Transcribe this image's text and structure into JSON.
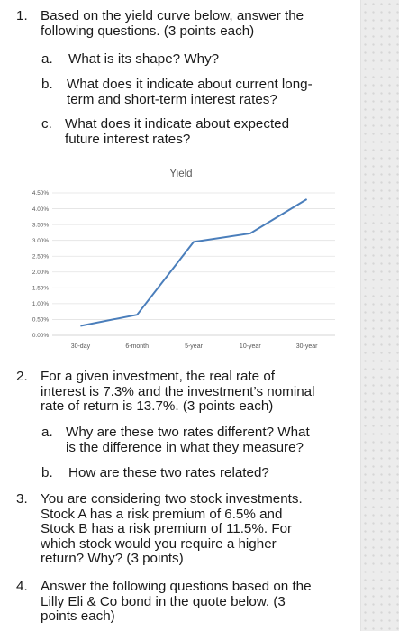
{
  "q1": {
    "num": "1.",
    "text_line1": "Based on the yield curve below, answer the",
    "text_line2": "following questions. (3 points each)",
    "a_label": "a.",
    "a_text": "What is its shape? Why?",
    "b_label": "b.",
    "b_line1": "What does it indicate about current long-",
    "b_line2": "term and short-term interest rates?",
    "c_label": "c.",
    "c_line1": "What does it indicate about expected",
    "c_line2": "future interest rates?"
  },
  "chart_data": {
    "type": "line",
    "title": "Yield",
    "categories": [
      "30-day",
      "6-month",
      "5-year",
      "10-year",
      "30-year"
    ],
    "series": [
      {
        "values": [
          0.3,
          0.65,
          2.95,
          3.22,
          4.3
        ]
      }
    ],
    "y_ticks": [
      "0.00%",
      "0.50%",
      "1.00%",
      "1.50%",
      "2.00%",
      "2.50%",
      "3.00%",
      "3.50%",
      "4.00%",
      "4.50%"
    ],
    "ylim": [
      0,
      4.5
    ],
    "grid": true,
    "legend": "none",
    "line_color": "#4a7ebb"
  },
  "q2": {
    "num": "2.",
    "line1": "For a given investment, the real rate of",
    "line2": "interest is 7.3% and the investment’s nominal",
    "line3": "rate of return is 13.7%. (3 points each)",
    "a_label": "a.",
    "a_line1": "Why are these two rates different? What",
    "a_line2": "is the difference in what they measure?",
    "b_label": "b.",
    "b_text": "How are these two rates related?"
  },
  "q3": {
    "num": "3.",
    "line1": "You are considering two stock investments.",
    "line2": "Stock A has a risk premium of 6.5% and",
    "line3": "Stock B has a risk premium of 11.5%. For",
    "line4": "which stock would you require a higher",
    "line5": "return? Why? (3 points)"
  },
  "q4": {
    "num": "4.",
    "line1": "Answer the following questions based on the",
    "line2": "Lilly Eli & Co bond in the quote below. (3",
    "line3": "points each)"
  }
}
